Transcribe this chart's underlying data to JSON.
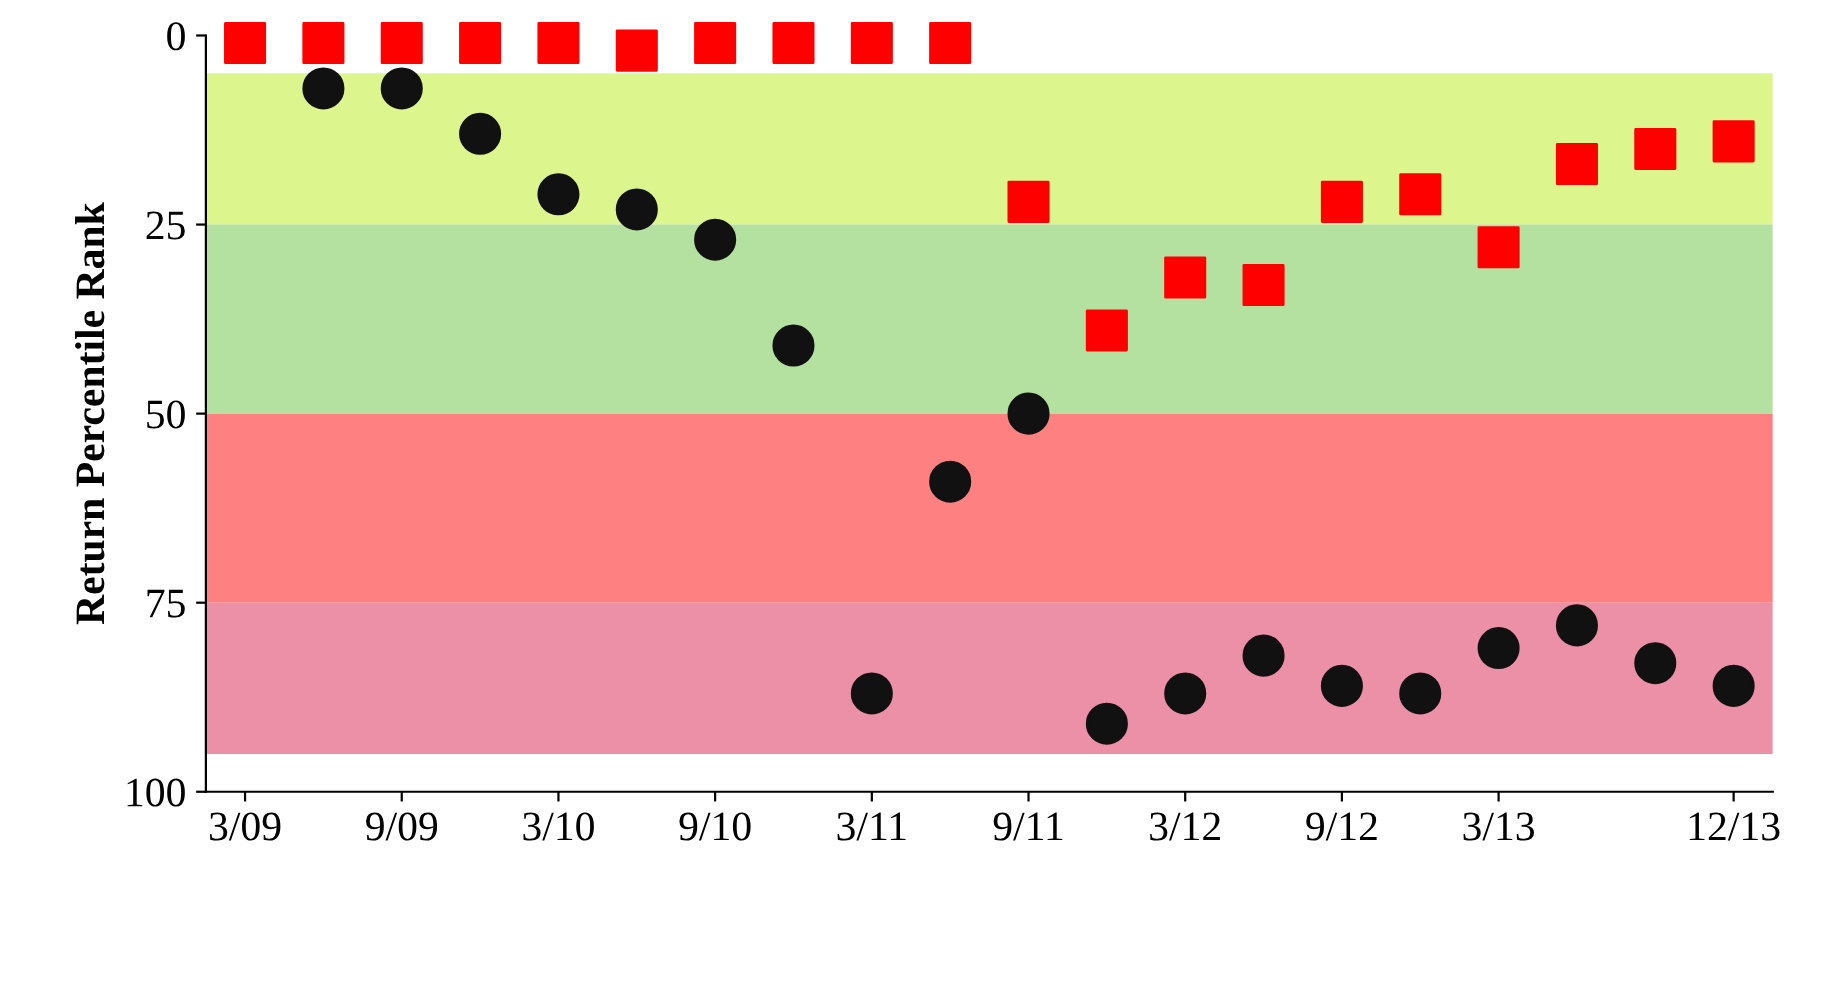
{
  "chart_data": {
    "type": "scatter",
    "ylabel": "Return Percentile Rank",
    "categories": [
      "3/09",
      null,
      "9/09",
      null,
      "3/10",
      null,
      "9/10",
      null,
      "3/11",
      null,
      "9/11",
      null,
      "3/12",
      null,
      "9/12",
      null,
      "3/13",
      null,
      null,
      "12/13"
    ],
    "series": [
      {
        "color": "#ff0000",
        "marker": "square",
        "values": [
          1,
          1,
          1,
          1,
          1,
          2,
          1,
          1,
          1,
          1,
          22,
          39,
          32,
          33,
          22,
          21,
          28,
          17,
          15,
          14
        ]
      },
      {
        "color": "#111111",
        "marker": "circle",
        "values": [
          null,
          7,
          7,
          13,
          21,
          23,
          27,
          41,
          87,
          59,
          50,
          91,
          87,
          82,
          86,
          87,
          81,
          78,
          83,
          86
        ]
      }
    ],
    "ylim": [
      100,
      0
    ],
    "yticks": [
      0,
      25,
      50,
      75,
      100
    ],
    "bands": [
      {
        "axis": "y",
        "from": 5,
        "to": 25,
        "color": "#dcf58c"
      },
      {
        "axis": "y",
        "from": 25,
        "to": 50,
        "color": "#b4e0a0"
      },
      {
        "axis": "y",
        "from": 50,
        "to": 75,
        "color": "#ff8080"
      },
      {
        "axis": "y",
        "from": 75,
        "to": 95,
        "color": "#ec90a8"
      }
    ],
    "grid": false,
    "legend": false
  }
}
